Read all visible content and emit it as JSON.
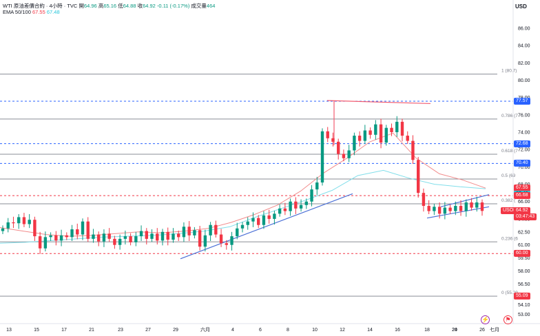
{
  "header": {
    "symbol": "WTI 原油差價合約 · 4小時 · TVC",
    "open_label": "開",
    "open": "64.96",
    "high_label": "高",
    "high": "65.16",
    "low_label": "低",
    "low": "64.88",
    "close_label": "收",
    "close": "64.92",
    "change": "-0.11 (-0.17%)",
    "volume_label": "成交量",
    "volume": "464",
    "ema_label": "EMA 50/100",
    "ema50": "67.55",
    "ema100": "67.48"
  },
  "currency": "USD",
  "colors": {
    "up": "#089981",
    "down": "#f23645",
    "ema50": "#f28b8b",
    "ema100": "#80deea",
    "trend": "#4a6fd6",
    "fib": "#787b86",
    "blue_dash": "#2962ff",
    "red_dash": "#f23645"
  },
  "icons": [
    "lightning-icon",
    "flag-icon"
  ],
  "chart_data": {
    "type": "candlestick",
    "title": "WTI 原油差價合約 · 4小時 · TVC",
    "ylim": [
      52.4,
      87.5
    ],
    "y_ticks": [
      "86.00",
      "84.00",
      "82.00",
      "80.00",
      "78.00",
      "76.00",
      "74.00",
      "72.00",
      "70.00",
      "68.00",
      "66.00",
      "64.00",
      "62.50",
      "61.00",
      "59.50",
      "58.00",
      "56.50",
      "55.00",
      "54.10",
      "53.00"
    ],
    "x_ticks": [
      "13",
      "15",
      "17",
      "21",
      "23",
      "27",
      "29",
      "六月",
      "4",
      "6",
      "8",
      "10",
      "12",
      "14",
      "16",
      "18",
      "20",
      "24",
      "26",
      "七月"
    ],
    "price_labels": [
      {
        "text": "77.57",
        "value": 77.57,
        "kind": "blue"
      },
      {
        "text": "72.68",
        "value": 72.68,
        "kind": "blue"
      },
      {
        "text": "70.40",
        "value": 70.4,
        "kind": "blue"
      },
      {
        "text": "67.55",
        "value": 67.55,
        "kind": "red"
      },
      {
        "text": "67.48",
        "value": 67.48,
        "kind": "cyan"
      },
      {
        "text": "66.68",
        "value": 66.68,
        "kind": "red"
      },
      {
        "text": "USOIL",
        "value": 64.92,
        "kind": "red"
      },
      {
        "text": "64.92",
        "value": 64.92,
        "kind": "red"
      },
      {
        "text": "03:47:43",
        "value": 64.92,
        "kind": "red"
      },
      {
        "text": "60.00",
        "value": 60.0,
        "kind": "red"
      },
      {
        "text": "55.09",
        "value": 55.09,
        "kind": "red"
      }
    ],
    "fib_levels": [
      {
        "label": "1 (80.7)",
        "value": 80.7
      },
      {
        "label": "0.786 (7",
        "value": 75.52
      },
      {
        "label": "0.618 (7",
        "value": 71.46
      },
      {
        "label": "0.5 (69",
        "value": 68.6
      },
      {
        "label": "0.382 (",
        "value": 65.74
      },
      {
        "label": "0.236 (6",
        "value": 61.35
      },
      {
        "label": "0 (55.09",
        "value": 55.09
      }
    ],
    "dashed_levels": [
      {
        "value": 77.57,
        "color": "blue"
      },
      {
        "value": 72.68,
        "color": "blue"
      },
      {
        "value": 70.4,
        "color": "blue"
      },
      {
        "value": 66.68,
        "color": "red"
      },
      {
        "value": 60.0,
        "color": "red"
      }
    ],
    "close_path": [
      62.9,
      63.6,
      63.5,
      64.2,
      63.4,
      63.9,
      62.0,
      60.6,
      61.9,
      62.1,
      61.5,
      62.1,
      61.9,
      62.8,
      62.2,
      63.7,
      61.7,
      62.2,
      61.4,
      62.3,
      61.7,
      61.0,
      61.7,
      62.0,
      61.3,
      62.0,
      62.6,
      61.7,
      62.3,
      61.5,
      62.5,
      61.6,
      62.3,
      61.9,
      63.1,
      62.1,
      62.7,
      60.8,
      62.1,
      63.3,
      62.2,
      61.2,
      61.0,
      62.0,
      62.9,
      63.3,
      63.7,
      64.1,
      63.3,
      64.4,
      64.0,
      64.6,
      65.2,
      64.9,
      66.0,
      65.2,
      65.6,
      66.0,
      67.4,
      68.2,
      74.1,
      73.3,
      72.9,
      71.5,
      71.0,
      71.9,
      73.6,
      73.0,
      74.2,
      73.7,
      74.9,
      72.8,
      74.5,
      74.0,
      75.2,
      73.6,
      73.0,
      70.8,
      67.0,
      65.5,
      64.9,
      65.4,
      64.6,
      65.3,
      64.9,
      65.5,
      64.9,
      65.9,
      65.3,
      65.9,
      64.92
    ],
    "ema50_path": [
      63.0,
      62.6,
      62.2,
      62.0,
      62.1,
      62.3,
      62.5,
      62.4,
      62.6,
      62.9,
      63.6,
      64.5,
      65.6,
      67.2,
      69.3,
      71.0,
      72.9,
      73.9,
      71.0,
      69.2,
      68.5,
      67.55
    ],
    "ema100_path": [
      61.2,
      61.3,
      61.5,
      61.7,
      61.9,
      62.0,
      62.1,
      62.3,
      62.6,
      63.1,
      64.2,
      65.2,
      66.2,
      67.3,
      69.0,
      69.6,
      68.7,
      68.0,
      67.7,
      67.48
    ]
  }
}
